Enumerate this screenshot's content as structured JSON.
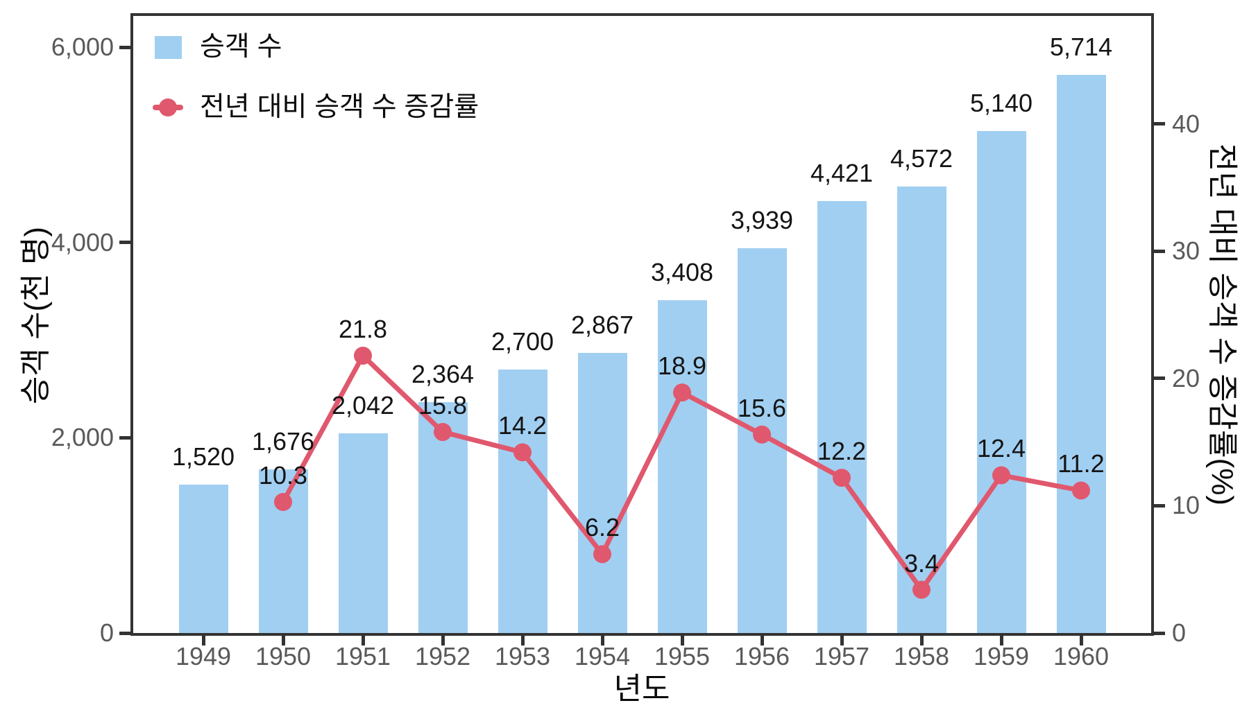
{
  "chart_data": {
    "type": "bar+line",
    "title": "",
    "categories": [
      "1949",
      "1950",
      "1951",
      "1952",
      "1953",
      "1954",
      "1955",
      "1956",
      "1957",
      "1958",
      "1959",
      "1960"
    ],
    "series": [
      {
        "name": "승객 수",
        "type": "bar",
        "axis": "left",
        "color": "#A1CFF1",
        "values": [
          1520,
          1676,
          2042,
          2364,
          2700,
          2867,
          3408,
          3939,
          4421,
          4572,
          5140,
          5714
        ],
        "labels": [
          "1,520",
          "1,676",
          "2,042",
          "2,364",
          "2,700",
          "2,867",
          "3,408",
          "3,939",
          "4,421",
          "4,572",
          "5,140",
          "5,714"
        ]
      },
      {
        "name": "전년 대비 승객 수 증감률",
        "type": "line",
        "axis": "right",
        "color": "#E0586D",
        "x": [
          "1950",
          "1951",
          "1952",
          "1953",
          "1954",
          "1955",
          "1956",
          "1957",
          "1958",
          "1959",
          "1960"
        ],
        "values": [
          10.3,
          21.8,
          15.8,
          14.2,
          6.2,
          18.9,
          15.6,
          12.2,
          3.4,
          12.4,
          11.2
        ],
        "labels": [
          "10.3",
          "21.8",
          "15.8",
          "14.2",
          "6.2",
          "18.9",
          "15.6",
          "12.2",
          "3.4",
          "12.4",
          "11.2"
        ]
      }
    ],
    "x_axis": {
      "title": "년도",
      "tick_labels": [
        "1949",
        "1950",
        "1951",
        "1952",
        "1953",
        "1954",
        "1955",
        "1956",
        "1957",
        "1958",
        "1959",
        "1960"
      ]
    },
    "left_axis": {
      "title": "승객 수(천 명)",
      "tick_values": [
        0,
        2000,
        4000,
        6000
      ],
      "tick_labels": [
        "0",
        "2,000",
        "4,000",
        "6,000"
      ],
      "range": [
        0,
        6320
      ]
    },
    "right_axis": {
      "title": "전년 대비 승객 수 증감률(%)",
      "tick_values": [
        0,
        10,
        20,
        30,
        40
      ],
      "tick_labels": [
        "0",
        "10",
        "20",
        "30",
        "40"
      ],
      "range": [
        0,
        48.5
      ]
    },
    "legend": {
      "position": "top-left",
      "entries": [
        "승객 수",
        "전년 대비 승객 수 증감률"
      ]
    },
    "grid": false,
    "colors": {
      "bar": "#A1CFF1",
      "line": "#E0586D",
      "tick_label": "#595959",
      "text": "#0a0a0a",
      "spine": "#333333",
      "background": "#FFFFFF"
    }
  }
}
